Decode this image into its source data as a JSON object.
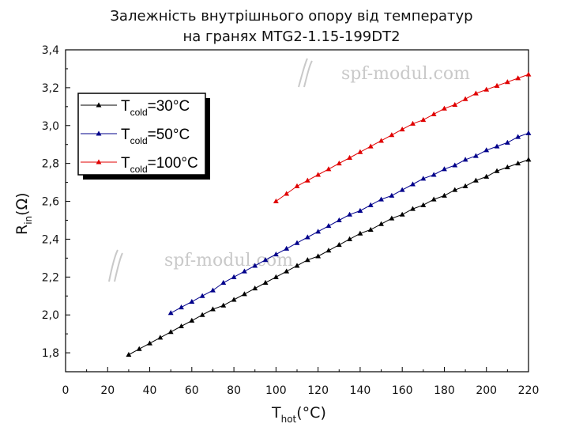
{
  "chart_data": {
    "type": "line",
    "title": [
      "Залежність внутрішнього опору від температур",
      "на гранях MTG2-1.15-199DT2"
    ],
    "xlabel": {
      "main": "T",
      "sub": "hot",
      "unit": "(°C)"
    },
    "ylabel": {
      "main": "R",
      "sub": "in",
      "unit": "(Ω)"
    },
    "xlim": [
      0,
      220
    ],
    "ylim": [
      1.7,
      3.4
    ],
    "x_ticks": [
      0,
      20,
      40,
      60,
      80,
      100,
      120,
      140,
      160,
      180,
      200,
      220
    ],
    "y_ticks": [
      1.8,
      2.0,
      2.2,
      2.4,
      2.6,
      2.8,
      3.0,
      3.2,
      3.4
    ],
    "y_tick_labels": [
      "1,8",
      "2,0",
      "2,2",
      "2,4",
      "2,6",
      "2,8",
      "3,0",
      "3,2",
      "3,4"
    ],
    "legend_position": "upper-left",
    "watermark": "spf-modul.com",
    "series": [
      {
        "name": "Tcold=30°C",
        "label": {
          "main": "T",
          "sub": "cold",
          "tail": "=30°C"
        },
        "color": "#000000",
        "x": [
          30,
          35,
          40,
          45,
          50,
          55,
          60,
          65,
          70,
          75,
          80,
          85,
          90,
          95,
          100,
          105,
          110,
          115,
          120,
          125,
          130,
          135,
          140,
          145,
          150,
          155,
          160,
          165,
          170,
          175,
          180,
          185,
          190,
          195,
          200,
          205,
          210,
          215,
          220
        ],
        "y": [
          1.79,
          1.82,
          1.85,
          1.88,
          1.91,
          1.94,
          1.97,
          2.0,
          2.03,
          2.05,
          2.08,
          2.11,
          2.14,
          2.17,
          2.2,
          2.23,
          2.26,
          2.29,
          2.31,
          2.34,
          2.37,
          2.4,
          2.43,
          2.45,
          2.48,
          2.51,
          2.53,
          2.56,
          2.58,
          2.61,
          2.63,
          2.66,
          2.68,
          2.71,
          2.73,
          2.76,
          2.78,
          2.8,
          2.82
        ]
      },
      {
        "name": "Tcold=50°C",
        "label": {
          "main": "T",
          "sub": "cold",
          "tail": "=50°C"
        },
        "color": "#00008b",
        "x": [
          50,
          55,
          60,
          65,
          70,
          75,
          80,
          85,
          90,
          95,
          100,
          105,
          110,
          115,
          120,
          125,
          130,
          135,
          140,
          145,
          150,
          155,
          160,
          165,
          170,
          175,
          180,
          185,
          190,
          195,
          200,
          205,
          210,
          215,
          220
        ],
        "y": [
          2.01,
          2.04,
          2.07,
          2.1,
          2.13,
          2.17,
          2.2,
          2.23,
          2.26,
          2.29,
          2.32,
          2.35,
          2.38,
          2.41,
          2.44,
          2.47,
          2.5,
          2.53,
          2.55,
          2.58,
          2.61,
          2.63,
          2.66,
          2.69,
          2.72,
          2.74,
          2.77,
          2.79,
          2.82,
          2.84,
          2.87,
          2.89,
          2.91,
          2.94,
          2.96
        ]
      },
      {
        "name": "Tcold=100°C",
        "label": {
          "main": "T",
          "sub": "cold",
          "tail": "=100°C"
        },
        "color": "#e00000",
        "x": [
          100,
          105,
          110,
          115,
          120,
          125,
          130,
          135,
          140,
          145,
          150,
          155,
          160,
          165,
          170,
          175,
          180,
          185,
          190,
          195,
          200,
          205,
          210,
          215,
          220
        ],
        "y": [
          2.6,
          2.64,
          2.68,
          2.71,
          2.74,
          2.77,
          2.8,
          2.83,
          2.86,
          2.89,
          2.92,
          2.95,
          2.98,
          3.01,
          3.03,
          3.06,
          3.09,
          3.11,
          3.14,
          3.17,
          3.19,
          3.21,
          3.23,
          3.25,
          3.27
        ]
      }
    ]
  }
}
